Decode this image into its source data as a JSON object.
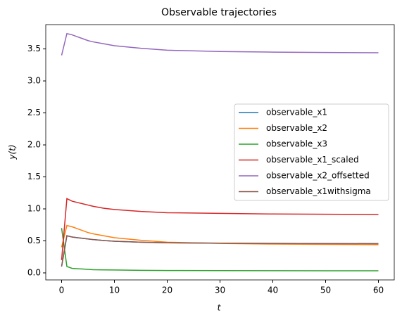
{
  "chart_data": {
    "type": "line",
    "title": "Observable trajectories",
    "x_label": "t",
    "y_label": "y(t)",
    "x": [
      0,
      1,
      2,
      3,
      4,
      5,
      6,
      8,
      10,
      15,
      20,
      30,
      40,
      50,
      60
    ],
    "series": [
      {
        "name": "observable_x1",
        "color": "#1f77b4",
        "values": [
          0.1,
          0.58,
          0.56,
          0.55,
          0.54,
          0.53,
          0.52,
          0.505,
          0.495,
          0.48,
          0.47,
          0.465,
          0.46,
          0.458,
          0.456
        ]
      },
      {
        "name": "observable_x2",
        "color": "#ff7f0e",
        "values": [
          0.4,
          0.74,
          0.72,
          0.69,
          0.66,
          0.63,
          0.61,
          0.58,
          0.55,
          0.51,
          0.48,
          0.46,
          0.45,
          0.445,
          0.44
        ]
      },
      {
        "name": "observable_x3",
        "color": "#2ca02c",
        "values": [
          0.7,
          0.1,
          0.07,
          0.065,
          0.06,
          0.055,
          0.05,
          0.047,
          0.045,
          0.04,
          0.037,
          0.035,
          0.034,
          0.033,
          0.033
        ]
      },
      {
        "name": "observable_x1_scaled",
        "color": "#d62728",
        "values": [
          0.2,
          1.16,
          1.12,
          1.1,
          1.08,
          1.06,
          1.04,
          1.01,
          0.99,
          0.96,
          0.94,
          0.93,
          0.92,
          0.916,
          0.912
        ]
      },
      {
        "name": "observable_x2_offsetted",
        "color": "#9467bd",
        "values": [
          3.4,
          3.74,
          3.72,
          3.69,
          3.66,
          3.63,
          3.61,
          3.58,
          3.55,
          3.51,
          3.48,
          3.46,
          3.45,
          3.445,
          3.44
        ]
      },
      {
        "name": "observable_x1withsigma",
        "color": "#8c564b",
        "values": [
          0.1,
          0.58,
          0.56,
          0.55,
          0.54,
          0.53,
          0.52,
          0.505,
          0.495,
          0.48,
          0.47,
          0.465,
          0.46,
          0.458,
          0.456
        ]
      }
    ],
    "xlim": [
      -3,
      63
    ],
    "ylim": [
      -0.11,
      3.88
    ],
    "xticks": [
      0,
      10,
      20,
      30,
      40,
      50,
      60
    ],
    "yticks": [
      {
        "value": 0,
        "label": "0.0"
      },
      {
        "value": 0.5,
        "label": "0.5"
      },
      {
        "value": 1,
        "label": "1.0"
      },
      {
        "value": 1.5,
        "label": "1.5"
      },
      {
        "value": 2,
        "label": "2.0"
      },
      {
        "value": 2.5,
        "label": "2.5"
      },
      {
        "value": 3,
        "label": "3.0"
      },
      {
        "value": 3.5,
        "label": "3.5"
      }
    ],
    "legend": "center right",
    "grid": false
  }
}
